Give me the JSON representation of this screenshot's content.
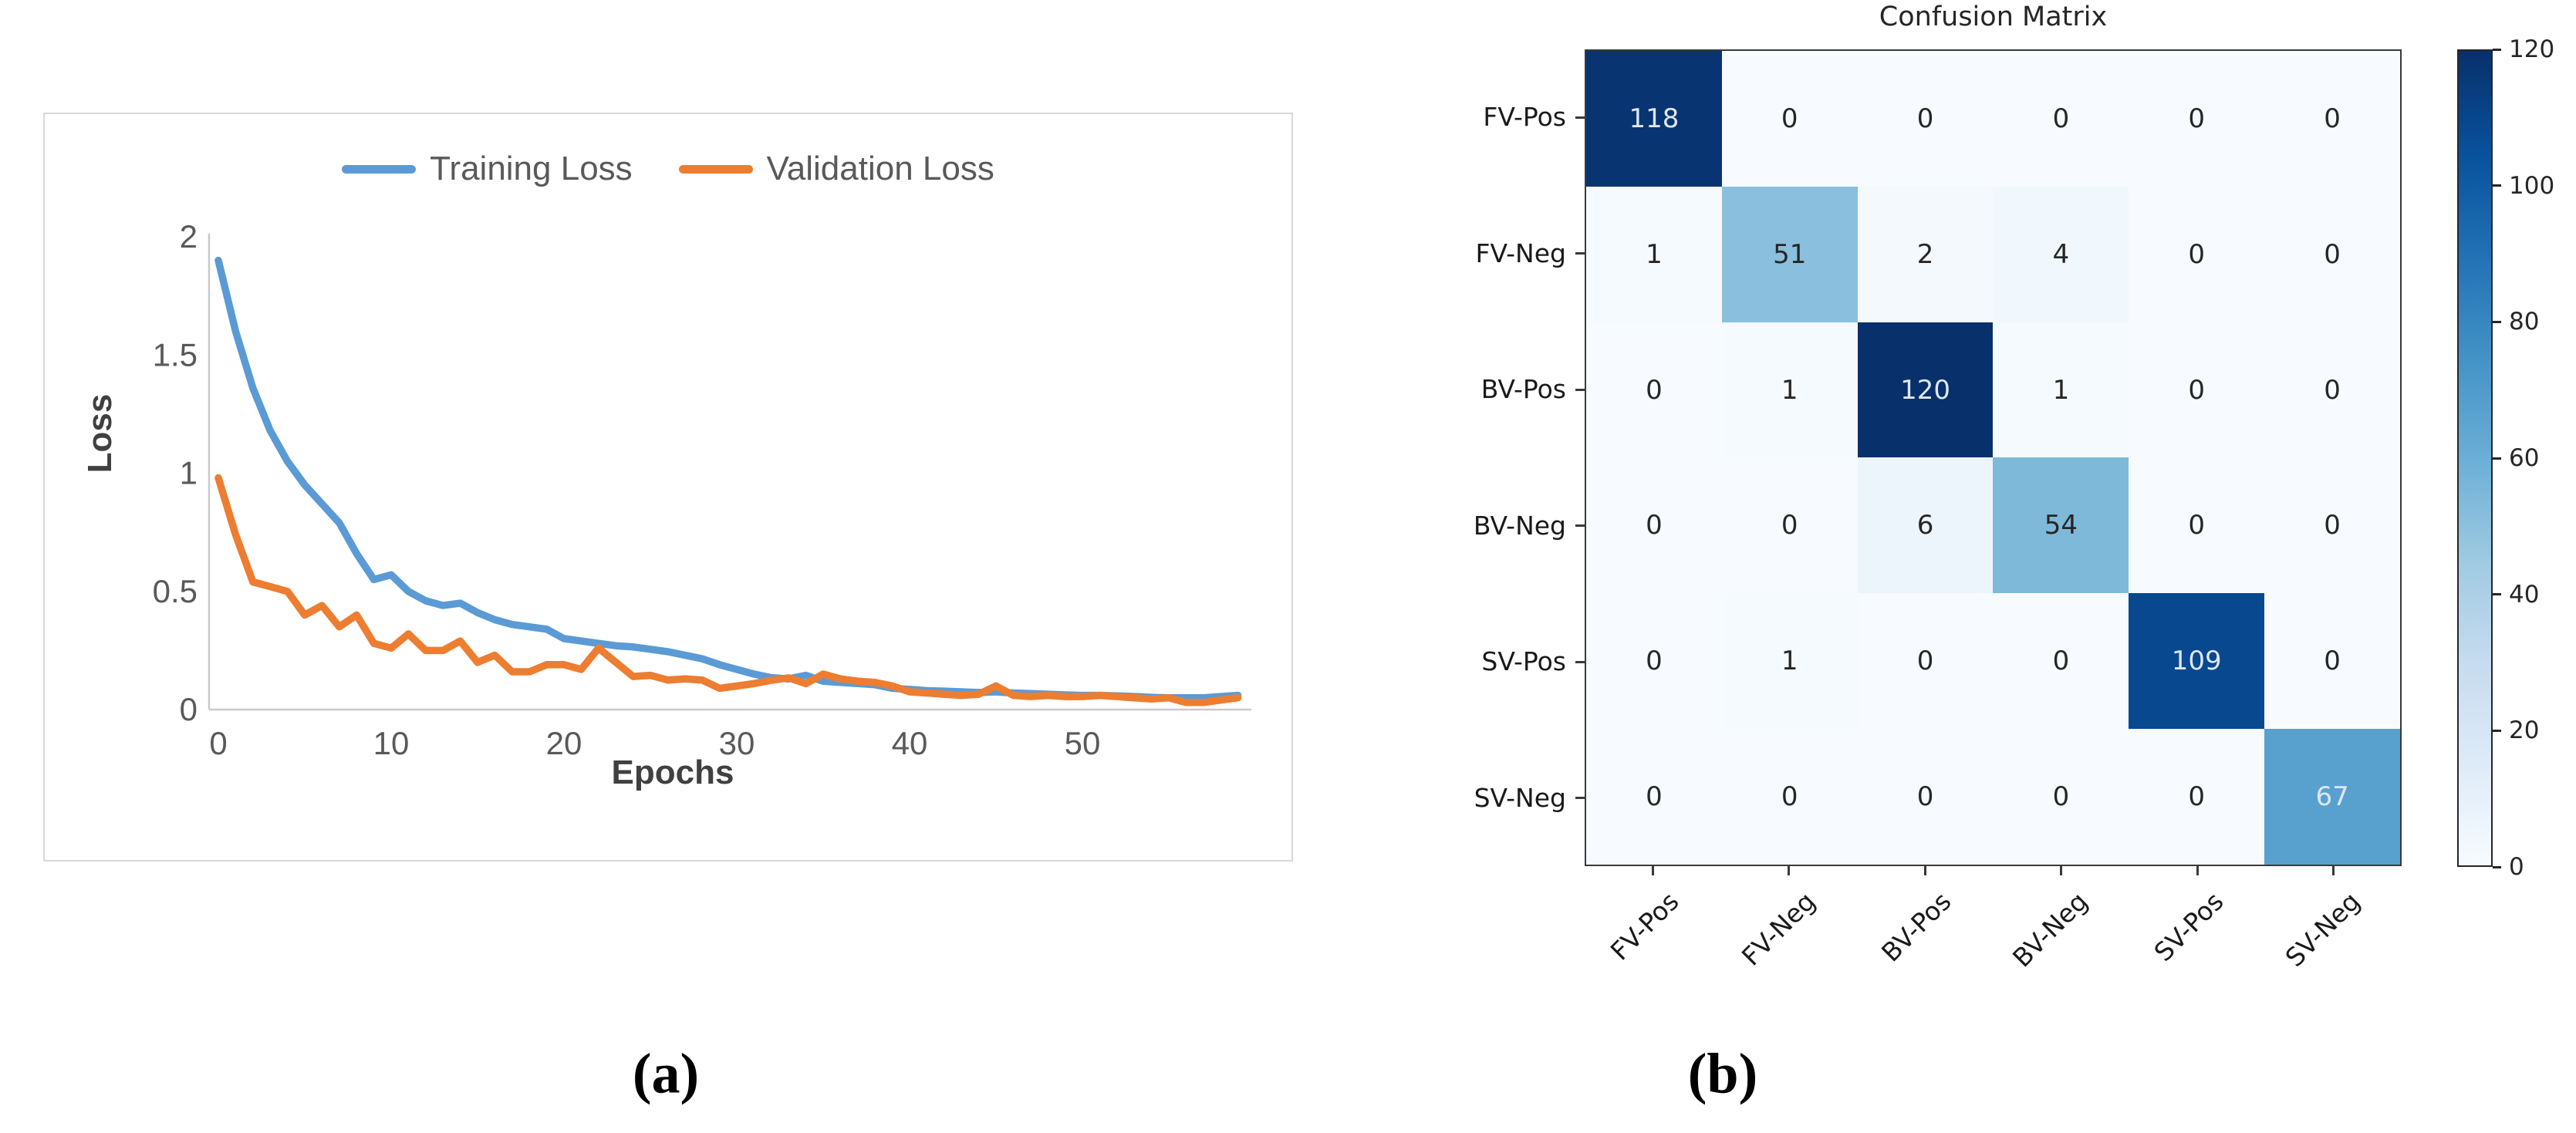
{
  "figure": {
    "caption_a": "(a)",
    "caption_b": "(b)"
  },
  "theme": {
    "training_color": "#5B9BD5",
    "validation_color": "#ED7D31",
    "axis_line_color": "#C9C9C9",
    "tick_label_color": "#595959",
    "axis_title_color": "#404040",
    "heatmap_dark_text": "#dde6f1",
    "heatmap_light_text": "#262626"
  },
  "chart_data": [
    {
      "type": "line",
      "title": "",
      "xlabel": "Epochs",
      "ylabel": "Loss",
      "xlim": [
        0,
        59
      ],
      "ylim": [
        0,
        2
      ],
      "x_ticks": [
        0,
        10,
        20,
        30,
        40,
        50
      ],
      "y_ticks": [
        0,
        0.5,
        1,
        1.5,
        2
      ],
      "grid": false,
      "legend_position": "top-center",
      "x": [
        0,
        1,
        2,
        3,
        4,
        5,
        6,
        7,
        8,
        9,
        10,
        11,
        12,
        13,
        14,
        15,
        16,
        17,
        18,
        19,
        20,
        21,
        22,
        23,
        24,
        25,
        26,
        27,
        28,
        29,
        30,
        31,
        32,
        33,
        34,
        35,
        36,
        37,
        38,
        39,
        40,
        41,
        42,
        43,
        44,
        45,
        46,
        47,
        48,
        49,
        50,
        51,
        52,
        53,
        54,
        55,
        56,
        57,
        58,
        59
      ],
      "series": [
        {
          "name": "Training Loss",
          "color": "#5B9BD5",
          "values": [
            1.9,
            1.6,
            1.36,
            1.18,
            1.05,
            0.95,
            0.87,
            0.79,
            0.66,
            0.55,
            0.57,
            0.5,
            0.46,
            0.44,
            0.45,
            0.41,
            0.38,
            0.36,
            0.35,
            0.34,
            0.3,
            0.29,
            0.28,
            0.27,
            0.265,
            0.255,
            0.245,
            0.23,
            0.215,
            0.19,
            0.17,
            0.15,
            0.135,
            0.13,
            0.145,
            0.12,
            0.115,
            0.11,
            0.105,
            0.09,
            0.085,
            0.08,
            0.078,
            0.075,
            0.072,
            0.075,
            0.07,
            0.068,
            0.065,
            0.062,
            0.06,
            0.06,
            0.058,
            0.055,
            0.052,
            0.05,
            0.05,
            0.05,
            0.055,
            0.06
          ]
        },
        {
          "name": "Validation Loss",
          "color": "#ED7D31",
          "values": [
            0.98,
            0.74,
            0.54,
            0.52,
            0.5,
            0.4,
            0.44,
            0.35,
            0.4,
            0.28,
            0.26,
            0.32,
            0.25,
            0.25,
            0.29,
            0.2,
            0.23,
            0.16,
            0.16,
            0.19,
            0.19,
            0.17,
            0.26,
            0.2,
            0.14,
            0.145,
            0.125,
            0.13,
            0.125,
            0.09,
            0.1,
            0.11,
            0.124,
            0.134,
            0.11,
            0.15,
            0.13,
            0.12,
            0.115,
            0.1,
            0.075,
            0.07,
            0.065,
            0.06,
            0.065,
            0.1,
            0.06,
            0.055,
            0.06,
            0.055,
            0.055,
            0.06,
            0.055,
            0.05,
            0.045,
            0.05,
            0.03,
            0.03,
            0.04,
            0.05
          ]
        }
      ]
    },
    {
      "type": "heatmap",
      "title": "Confusion Matrix",
      "row_labels": [
        "FV-Pos",
        "FV-Neg",
        "BV-Pos",
        "BV-Neg",
        "SV-Pos",
        "SV-Neg"
      ],
      "col_labels": [
        "FV-Pos",
        "FV-Neg",
        "BV-Pos",
        "BV-Neg",
        "SV-Pos",
        "SV-Neg"
      ],
      "values": [
        [
          118,
          0,
          0,
          0,
          0,
          0
        ],
        [
          1,
          51,
          2,
          4,
          0,
          0
        ],
        [
          0,
          1,
          120,
          1,
          0,
          0
        ],
        [
          0,
          0,
          6,
          54,
          0,
          0
        ],
        [
          0,
          1,
          0,
          0,
          109,
          0
        ],
        [
          0,
          0,
          0,
          0,
          0,
          67
        ]
      ],
      "vmin": 0,
      "vmax": 120,
      "colorbar_ticks": [
        0,
        20,
        40,
        60,
        80,
        100,
        120
      ],
      "colormap": "Blues",
      "colormap_anchors": [
        "#f7fbff",
        "#deebf7",
        "#c6dbef",
        "#9ecae1",
        "#6baed6",
        "#4292c6",
        "#2171b5",
        "#08519c",
        "#08306b"
      ]
    }
  ]
}
